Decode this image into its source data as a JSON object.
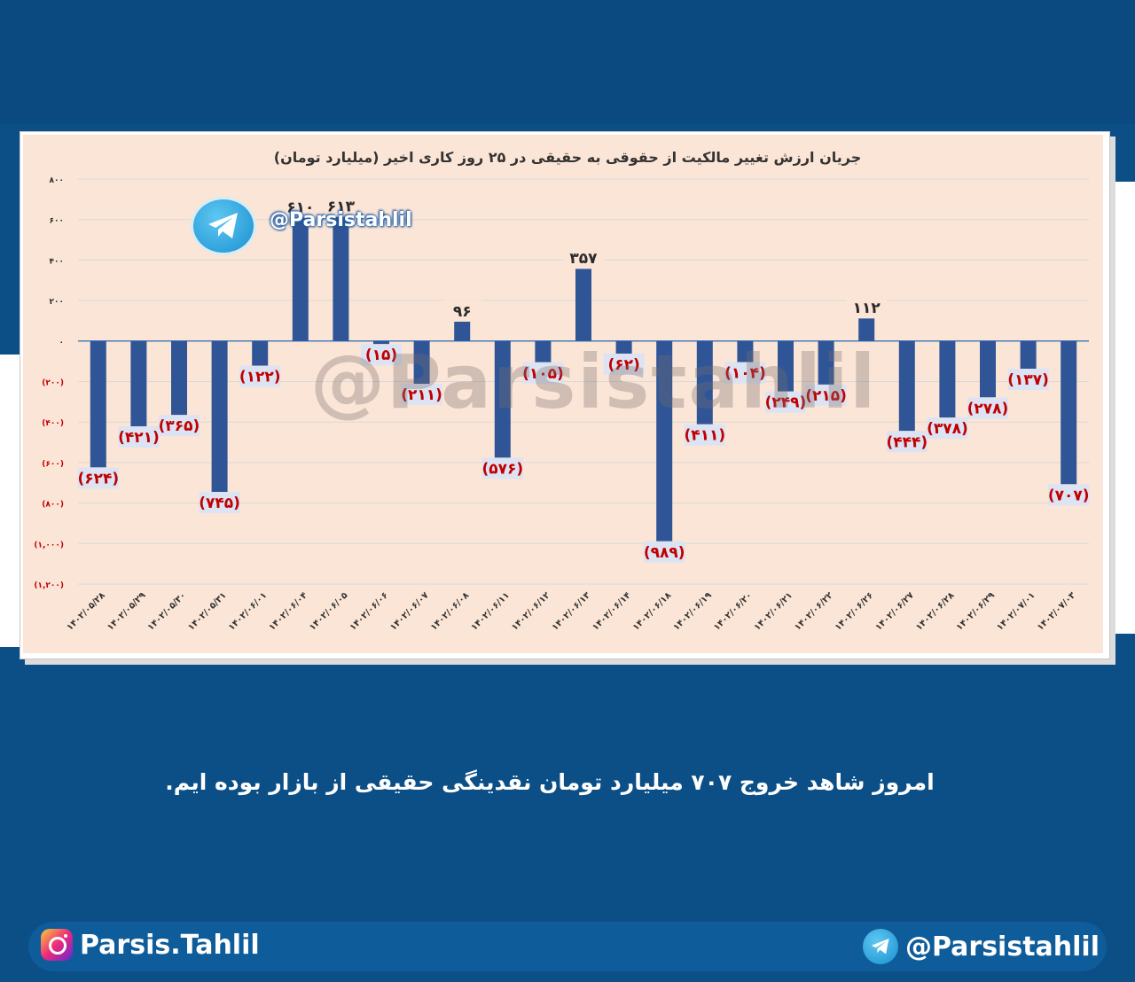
{
  "chart_data": {
    "type": "bar",
    "title": "جریان ارزش تغییر مالکیت از حقوقی به حقیقی در ۲۵ روز کاری اخیر (میلیارد تومان)",
    "categories": [
      "۱۴۰۲/۰۵/۲۸",
      "۱۴۰۲/۰۵/۲۹",
      "۱۴۰۲/۰۵/۳۰",
      "۱۴۰۲/۰۵/۳۱",
      "۱۴۰۲/۰۶/۰۱",
      "۱۴۰۲/۰۶/۰۴",
      "۱۴۰۲/۰۶/۰۵",
      "۱۴۰۲/۰۶/۰۶",
      "۱۴۰۲/۰۶/۰۷",
      "۱۴۰۲/۰۶/۰۸",
      "۱۴۰۲/۰۶/۱۱",
      "۱۴۰۲/۰۶/۱۲",
      "۱۴۰۲/۰۶/۱۳",
      "۱۴۰۲/۰۶/۱۴",
      "۱۴۰۲/۰۶/۱۸",
      "۱۴۰۲/۰۶/۱۹",
      "۱۴۰۲/۰۶/۲۰",
      "۱۴۰۲/۰۶/۲۱",
      "۱۴۰۲/۰۶/۲۲",
      "۱۴۰۲/۰۶/۲۶",
      "۱۴۰۲/۰۶/۲۷",
      "۱۴۰۲/۰۶/۲۸",
      "۱۴۰۲/۰۶/۲۹",
      "۱۴۰۲/۰۷/۰۱",
      "۱۴۰۲/۰۷/۰۳"
    ],
    "values": [
      -624,
      -421,
      -365,
      -745,
      -122,
      610,
      613,
      -15,
      -211,
      96,
      -576,
      -105,
      357,
      -62,
      -989,
      -411,
      -104,
      -249,
      -215,
      112,
      -444,
      -378,
      -278,
      -137,
      -707
    ],
    "data_labels": [
      "(۶۲۴)",
      "(۴۲۱)",
      "(۳۶۵)",
      "(۷۴۵)",
      "(۱۲۲)",
      "۶۱۰",
      "۶۱۳",
      "(۱۵)",
      "(۲۱۱)",
      "۹۶",
      "(۵۷۶)",
      "(۱۰۵)",
      "۳۵۷",
      "(۶۲)",
      "(۹۸۹)",
      "(۴۱۱)",
      "(۱۰۴)",
      "(۲۴۹)",
      "(۲۱۵)",
      "۱۱۲",
      "(۴۴۴)",
      "(۳۷۸)",
      "(۲۷۸)",
      "(۱۳۷)",
      "(۷۰۷)"
    ],
    "yticks": [
      800,
      600,
      400,
      200,
      0,
      -200,
      -400,
      -600,
      -800,
      -1000,
      -1200
    ],
    "ytick_labels": [
      "۸۰۰",
      "۶۰۰",
      "۴۰۰",
      "۲۰۰",
      "۰",
      "(۲۰۰)",
      "(۴۰۰)",
      "(۶۰۰)",
      "(۸۰۰)",
      "(۱,۰۰۰)",
      "(۱,۲۰۰)"
    ],
    "ylim": [
      -1200,
      800
    ],
    "grid": true,
    "xlabel": "",
    "ylabel": "",
    "colors": {
      "bar": "#2f5597",
      "negative_label": "#c00000",
      "positive_label": "#2b2b2b",
      "grid": "#d9d9d9",
      "background": "#fbe5d6"
    }
  },
  "branding": {
    "telegram_handle": "@Parsistahlil",
    "watermark": "@Parsistahlil",
    "instagram_handle": "Parsis.Tahlil"
  },
  "caption": "امروز شاهد خروج ۷۰۷ میلیارد تومان نقدینگی حقیقی از بازار بوده ایم."
}
